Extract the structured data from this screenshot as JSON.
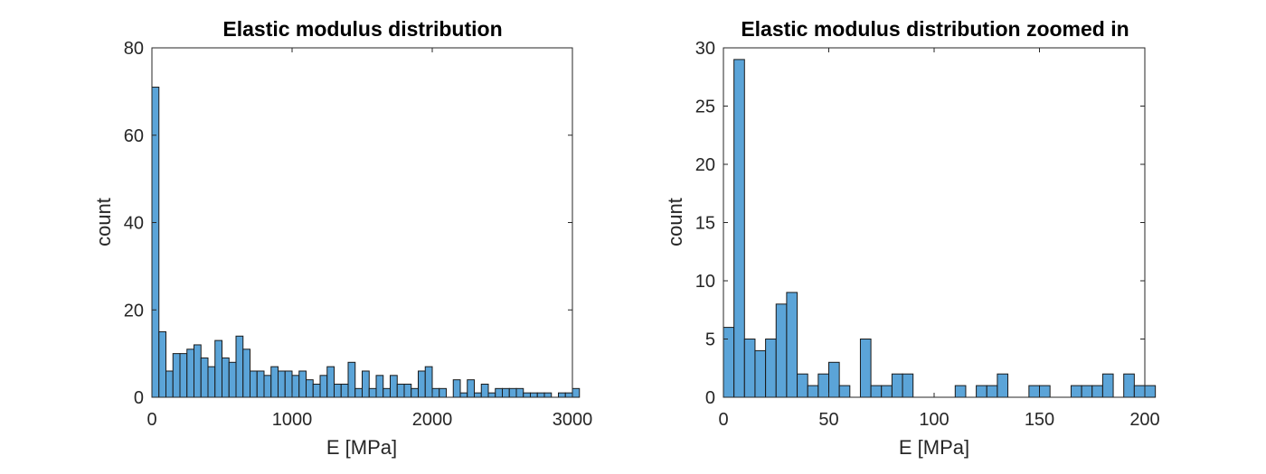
{
  "chart_data": [
    {
      "type": "bar",
      "title": "Elastic modulus distribution",
      "xlabel": "E [MPa]",
      "ylabel": "count",
      "xlim": [
        0,
        3000
      ],
      "ylim": [
        0,
        80
      ],
      "xticks": [
        "0",
        "1000",
        "2000",
        "3000"
      ],
      "yticks": [
        "0",
        "20",
        "40",
        "60",
        "80"
      ],
      "xtick_values": [
        0,
        1000,
        2000,
        3000
      ],
      "ytick_values": [
        0,
        20,
        40,
        60,
        80
      ],
      "bin_width": 50,
      "bin_start": 0,
      "values": [
        71,
        15,
        6,
        10,
        10,
        11,
        12,
        9,
        7,
        13,
        9,
        8,
        14,
        11,
        6,
        6,
        5,
        7,
        6,
        6,
        5,
        6,
        4,
        3,
        5,
        7,
        3,
        3,
        8,
        2,
        6,
        2,
        5,
        2,
        5,
        3,
        3,
        2,
        6,
        7,
        2,
        2,
        0,
        4,
        1,
        4,
        1,
        3,
        1,
        2,
        2,
        2,
        2,
        1,
        1,
        1,
        1,
        0,
        1,
        1,
        2
      ]
    },
    {
      "type": "bar",
      "title": "Elastic modulus distribution zoomed in",
      "xlabel": "E [MPa]",
      "ylabel": "count",
      "xlim": [
        0,
        200
      ],
      "ylim": [
        0,
        30
      ],
      "xticks": [
        "0",
        "50",
        "100",
        "150",
        "200"
      ],
      "yticks": [
        "0",
        "5",
        "10",
        "15",
        "20",
        "25",
        "30"
      ],
      "xtick_values": [
        0,
        50,
        100,
        150,
        200
      ],
      "ytick_values": [
        0,
        5,
        10,
        15,
        20,
        25,
        30
      ],
      "bin_width": 5,
      "bin_start": 0,
      "values": [
        6,
        29,
        5,
        4,
        5,
        8,
        9,
        2,
        1,
        2,
        3,
        1,
        0,
        5,
        1,
        1,
        2,
        2,
        0,
        0,
        0,
        0,
        1,
        0,
        1,
        1,
        2,
        0,
        0,
        1,
        1,
        0,
        0,
        1,
        1,
        1,
        2,
        0,
        2,
        1,
        1
      ]
    }
  ]
}
